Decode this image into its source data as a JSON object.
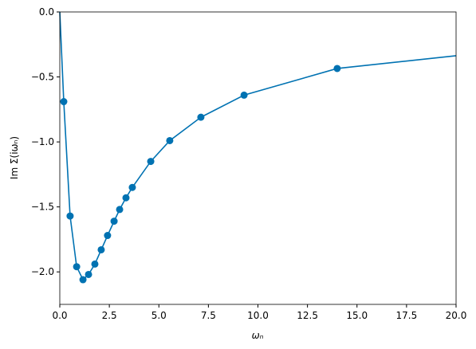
{
  "chart_data": {
    "type": "line",
    "xlabel": "ωₙ",
    "ylabel": "Im Σ(iωₙ)",
    "series": [
      {
        "color": "#0072b2",
        "marker": false,
        "x": [
          0,
          0.2,
          0.52,
          0.85,
          1.17,
          1.45,
          1.77,
          2.09,
          2.41,
          2.74,
          3.02,
          3.34,
          3.66,
          4.59,
          5.55,
          7.12,
          9.3,
          14.0,
          20
        ],
        "values": [
          0,
          -0.69,
          -1.57,
          -1.96,
          -2.06,
          -2.02,
          -1.94,
          -1.83,
          -1.72,
          -1.61,
          -1.52,
          -1.43,
          -1.35,
          -1.15,
          -0.99,
          -0.81,
          -0.64,
          -0.435,
          -0.337
        ]
      },
      {
        "color": "#0072b2",
        "marker": true,
        "x": [
          0.2,
          0.52,
          0.85,
          1.17,
          1.45,
          1.77,
          2.09,
          2.41,
          2.74,
          3.02,
          3.34,
          3.66,
          4.59,
          5.55,
          7.12,
          9.3,
          14.0
        ],
        "values": [
          -0.69,
          -1.57,
          -1.96,
          -2.06,
          -2.02,
          -1.94,
          -1.83,
          -1.72,
          -1.61,
          -1.52,
          -1.43,
          -1.35,
          -1.15,
          -0.99,
          -0.81,
          -0.64,
          -0.435
        ]
      }
    ],
    "xlim": [
      0,
      20
    ],
    "xticks": [
      {
        "value": 0,
        "label": "0.0"
      },
      {
        "value": 2.5,
        "label": "2.5"
      },
      {
        "value": 5,
        "label": "5.0"
      },
      {
        "value": 7.5,
        "label": "7.5"
      },
      {
        "value": 10,
        "label": "10.0"
      },
      {
        "value": 12.5,
        "label": "12.5"
      },
      {
        "value": 15,
        "label": "15.0"
      },
      {
        "value": 17.5,
        "label": "17.5"
      },
      {
        "value": 20,
        "label": "20.0"
      }
    ],
    "ylim": [
      -2.25,
      0
    ],
    "yticks": [
      {
        "value": -2,
        "label": "−2.0"
      },
      {
        "value": -1.5,
        "label": "−1.5"
      },
      {
        "value": -1,
        "label": "−1.0"
      },
      {
        "value": -0.5,
        "label": "−0.5"
      },
      {
        "value": 0,
        "label": "0.0"
      }
    ],
    "grid": false
  }
}
